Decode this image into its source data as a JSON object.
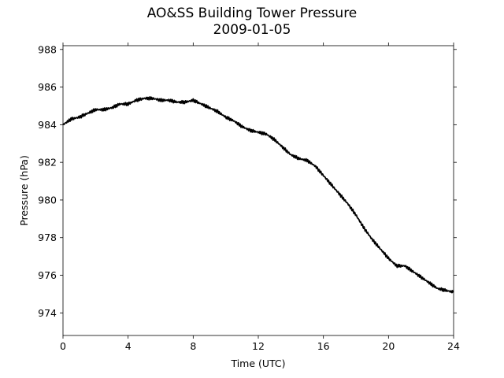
{
  "chart_data": {
    "type": "line",
    "title": "AO&SS Building Tower Pressure",
    "subtitle": "2009-01-05",
    "xlabel": "Time (UTC)",
    "ylabel": "Pressure (hPa)",
    "xlim": [
      0,
      24
    ],
    "ylim": [
      972.8,
      988.2
    ],
    "xticks": [
      0,
      4,
      8,
      12,
      16,
      20,
      24
    ],
    "yticks": [
      974,
      976,
      978,
      980,
      982,
      984,
      986,
      988
    ],
    "grid": false,
    "line_color": "#000000",
    "series": [
      {
        "x": [
          0,
          0.5,
          1,
          1.5,
          2,
          2.5,
          3,
          3.5,
          4,
          4.5,
          5,
          5.5,
          6,
          6.5,
          7,
          7.5,
          8,
          8.5,
          9,
          9.5,
          10,
          10.5,
          11,
          11.5,
          12,
          12.5,
          13,
          13.5,
          14,
          14.5,
          15,
          15.5,
          16,
          16.5,
          17,
          17.5,
          18,
          18.5,
          19,
          19.5,
          20,
          20.5,
          21,
          21.5,
          22,
          22.5,
          23,
          23.5,
          24
        ],
        "y": [
          984.0,
          984.3,
          984.4,
          984.6,
          984.8,
          984.8,
          984.9,
          985.1,
          985.1,
          985.3,
          985.4,
          985.4,
          985.3,
          985.3,
          985.2,
          985.2,
          985.3,
          985.1,
          984.9,
          984.7,
          984.4,
          984.2,
          983.9,
          983.7,
          983.6,
          983.5,
          983.2,
          982.8,
          982.4,
          982.2,
          982.1,
          981.8,
          981.3,
          980.8,
          980.3,
          979.8,
          979.2,
          978.5,
          977.9,
          977.4,
          976.9,
          976.5,
          976.5,
          976.2,
          975.9,
          975.6,
          975.3,
          975.2,
          975.1
        ]
      }
    ]
  }
}
